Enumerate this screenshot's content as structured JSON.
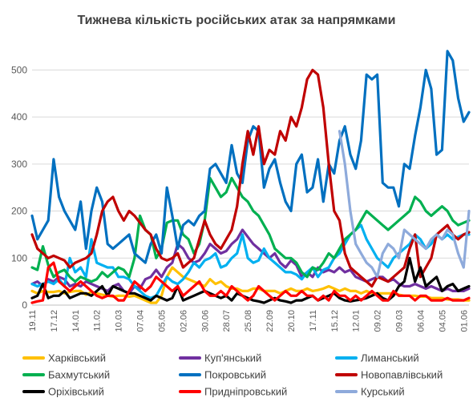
{
  "chart_data": {
    "type": "line",
    "title": "Тижнева кількість російських атак за напрямками",
    "ylim": [
      0,
      550
    ],
    "yticks": [
      0,
      100,
      200,
      300,
      400,
      500
    ],
    "grid": true,
    "legend_position": "bottom",
    "x": [
      "19.11",
      "26.11",
      "03.12",
      "10.12",
      "17.12",
      "24.12",
      "31.12",
      "07.01",
      "14.01",
      "21.01",
      "28.01",
      "04.02",
      "11.02",
      "18.02",
      "25.02",
      "03.03",
      "10.03",
      "17.03",
      "24.03",
      "31.03",
      "07.04",
      "14.04",
      "21.04",
      "28.04",
      "05.05",
      "12.05",
      "19.05",
      "26.05",
      "02.06",
      "09.06",
      "16.06",
      "23.06",
      "30.06",
      "07.07",
      "14.07",
      "21.07",
      "28.07",
      "04.08",
      "11.08",
      "18.08",
      "25.08",
      "01.09",
      "08.09",
      "15.09",
      "22.09",
      "29.09",
      "06.10",
      "13.10",
      "20.10",
      "27.10",
      "03.11",
      "10.11",
      "17.11",
      "24.11",
      "01.12",
      "08.12",
      "15.12",
      "22.12",
      "29.12",
      "05.01",
      "12.01",
      "19.01",
      "26.01",
      "02.02",
      "09.02",
      "16.02",
      "23.02",
      "02.03",
      "09.03",
      "16.03",
      "23.03",
      "30.03",
      "06.04",
      "13.04",
      "20.04",
      "27.04",
      "04.05",
      "11.05",
      "18.05",
      "25.05",
      "01.06",
      "08.06"
    ],
    "xtick_labels": [
      "19.11",
      "17.12",
      "14.01",
      "11.02",
      "10.03",
      "07.04",
      "05.05",
      "02.06",
      "30.06",
      "28.07",
      "25.08",
      "22.09",
      "20.10",
      "17.11",
      "15.12",
      "12.01",
      "09.02",
      "09.03",
      "06.04",
      "04.05",
      "01.06"
    ],
    "series": [
      {
        "name": "Харківський",
        "color": "#ffc000",
        "values": [
          30,
          25,
          30,
          28,
          28,
          30,
          25,
          28,
          30,
          30,
          22,
          28,
          25,
          22,
          20,
          18,
          20,
          20,
          18,
          20,
          15,
          10,
          5,
          5,
          20,
          60,
          80,
          70,
          60,
          55,
          50,
          45,
          40,
          55,
          45,
          50,
          40,
          35,
          35,
          30,
          30,
          35,
          35,
          30,
          30,
          30,
          25,
          30,
          35,
          30,
          30,
          35,
          30,
          32,
          35,
          40,
          35,
          30,
          35,
          30,
          30,
          25,
          30,
          25,
          25,
          25,
          25,
          25,
          22,
          20,
          20,
          20,
          18,
          18,
          15,
          15,
          15,
          12,
          12,
          12,
          10,
          10
        ]
      },
      {
        "name": "Куп'янський",
        "color": "#7030a0",
        "values": [
          45,
          50,
          40,
          55,
          50,
          60,
          55,
          40,
          45,
          40,
          50,
          45,
          40,
          35,
          30,
          40,
          45,
          30,
          25,
          40,
          35,
          55,
          60,
          75,
          60,
          80,
          90,
          130,
          120,
          100,
          90,
          95,
          110,
          130,
          120,
          110,
          115,
          130,
          140,
          160,
          145,
          130,
          120,
          110,
          100,
          110,
          90,
          80,
          95,
          85,
          60,
          70,
          60,
          80,
          70,
          75,
          70,
          80,
          70,
          75,
          60,
          55,
          50,
          55,
          60,
          60,
          50,
          55,
          45,
          40,
          40,
          45,
          40,
          35,
          40,
          35,
          30,
          35,
          30,
          30,
          30,
          35
        ]
      },
      {
        "name": "Лиманський",
        "color": "#00b0f0",
        "values": [
          45,
          40,
          45,
          50,
          45,
          55,
          40,
          100,
          70,
          80,
          60,
          140,
          90,
          85,
          80,
          80,
          60,
          60,
          55,
          40,
          30,
          20,
          15,
          20,
          40,
          60,
          50,
          45,
          55,
          70,
          90,
          80,
          95,
          100,
          110,
          80,
          85,
          100,
          110,
          150,
          100,
          90,
          95,
          120,
          100,
          90,
          80,
          70,
          70,
          65,
          55,
          70,
          80,
          60,
          75,
          80,
          100,
          110,
          130,
          150,
          160,
          170,
          140,
          120,
          100,
          90,
          80,
          100,
          110,
          120,
          130,
          150,
          140,
          120,
          130,
          150,
          140,
          150,
          140,
          145,
          150,
          150
        ]
      },
      {
        "name": "Бахмутський",
        "color": "#00b050",
        "values": [
          80,
          75,
          125,
          85,
          60,
          70,
          75,
          60,
          50,
          60,
          55,
          50,
          55,
          70,
          60,
          70,
          80,
          75,
          60,
          100,
          190,
          160,
          150,
          100,
          120,
          175,
          180,
          180,
          150,
          140,
          110,
          130,
          180,
          270,
          250,
          230,
          240,
          270,
          250,
          230,
          220,
          200,
          190,
          170,
          150,
          120,
          110,
          100,
          100,
          90,
          70,
          60,
          80,
          75,
          90,
          110,
          100,
          120,
          140,
          150,
          160,
          180,
          200,
          190,
          180,
          170,
          160,
          170,
          180,
          190,
          200,
          230,
          220,
          200,
          190,
          200,
          210,
          200,
          180,
          170,
          175,
          180
        ]
      },
      {
        "name": "Покровський",
        "color": "#0070c0",
        "values": [
          190,
          140,
          160,
          180,
          310,
          230,
          200,
          180,
          160,
          220,
          120,
          200,
          250,
          220,
          130,
          120,
          130,
          140,
          150,
          110,
          100,
          90,
          130,
          150,
          110,
          250,
          190,
          120,
          170,
          180,
          170,
          190,
          200,
          290,
          300,
          280,
          260,
          340,
          280,
          260,
          350,
          380,
          370,
          250,
          290,
          310,
          260,
          220,
          200,
          300,
          320,
          240,
          250,
          310,
          220,
          300,
          280,
          350,
          380,
          320,
          290,
          350,
          490,
          480,
          490,
          260,
          250,
          250,
          210,
          300,
          290,
          360,
          420,
          500,
          460,
          320,
          330,
          540,
          520,
          440,
          390,
          410
        ]
      },
      {
        "name": "Новопавлівський",
        "color": "#c00000",
        "values": [
          150,
          120,
          110,
          100,
          105,
          100,
          95,
          80,
          90,
          95,
          100,
          110,
          150,
          200,
          220,
          230,
          200,
          180,
          200,
          190,
          175,
          160,
          150,
          120,
          100,
          95,
          100,
          110,
          80,
          90,
          100,
          140,
          180,
          150,
          130,
          120,
          140,
          160,
          210,
          300,
          370,
          320,
          380,
          300,
          330,
          320,
          370,
          350,
          400,
          380,
          420,
          480,
          500,
          490,
          420,
          300,
          200,
          180,
          110,
          80,
          70,
          60,
          50,
          40,
          60,
          55,
          50,
          60,
          70,
          80,
          120,
          150,
          60,
          80,
          100,
          150,
          160,
          170,
          150,
          140,
          150,
          155
        ]
      },
      {
        "name": "Оріхівський",
        "color": "#000000",
        "values": [
          15,
          20,
          45,
          15,
          20,
          20,
          30,
          15,
          20,
          25,
          25,
          20,
          30,
          40,
          20,
          40,
          35,
          30,
          25,
          25,
          20,
          15,
          10,
          20,
          15,
          10,
          15,
          40,
          10,
          15,
          20,
          25,
          30,
          25,
          20,
          15,
          20,
          10,
          25,
          20,
          15,
          10,
          8,
          5,
          10,
          15,
          10,
          8,
          5,
          10,
          10,
          15,
          20,
          10,
          15,
          20,
          25,
          15,
          10,
          8,
          10,
          12,
          15,
          20,
          25,
          15,
          10,
          20,
          40,
          50,
          100,
          50,
          80,
          40,
          50,
          60,
          30,
          40,
          45,
          30,
          35,
          40
        ]
      },
      {
        "name": "Придніпровський",
        "color": "#ff0000",
        "values": [
          5,
          8,
          10,
          80,
          90,
          50,
          40,
          30,
          40,
          50,
          40,
          30,
          20,
          15,
          20,
          20,
          10,
          10,
          30,
          50,
          40,
          30,
          40,
          60,
          50,
          40,
          30,
          40,
          20,
          30,
          40,
          50,
          30,
          20,
          20,
          30,
          20,
          40,
          30,
          20,
          10,
          20,
          40,
          30,
          20,
          10,
          20,
          30,
          20,
          20,
          30,
          20,
          20,
          10,
          20,
          10,
          30,
          20,
          20,
          10,
          20,
          10,
          20,
          30,
          20,
          10,
          10,
          30,
          20,
          20,
          20,
          10,
          20,
          20,
          10,
          10,
          10,
          15,
          10,
          10,
          10,
          15
        ]
      },
      {
        "name": "Курський",
        "color": "#8eaadb",
        "values": [
          null,
          null,
          null,
          null,
          null,
          null,
          null,
          null,
          null,
          null,
          null,
          null,
          null,
          null,
          null,
          null,
          null,
          null,
          null,
          null,
          null,
          null,
          null,
          null,
          null,
          null,
          null,
          null,
          null,
          null,
          null,
          null,
          null,
          null,
          null,
          null,
          null,
          null,
          null,
          null,
          null,
          null,
          null,
          null,
          null,
          null,
          null,
          null,
          null,
          null,
          null,
          null,
          null,
          null,
          null,
          null,
          null,
          370,
          300,
          200,
          130,
          110,
          90,
          80,
          60,
          110,
          130,
          120,
          100,
          160,
          150,
          140,
          130,
          120,
          140,
          150,
          140,
          160,
          150,
          110,
          80,
          200
        ]
      }
    ]
  }
}
